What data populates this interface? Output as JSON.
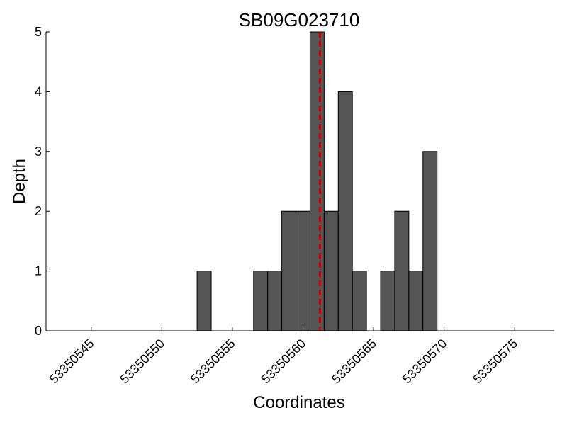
{
  "chart_data": {
    "type": "bar",
    "title": "SB09G023710",
    "xlabel": "Coordinates",
    "ylabel": "Depth",
    "xlim": [
      53350541.8,
      53350577.8
    ],
    "ylim": [
      0,
      5
    ],
    "x_ticks": [
      "53350545",
      "53350550",
      "53350555",
      "53350560",
      "53350565",
      "53350570",
      "53350575"
    ],
    "y_ticks": [
      "0",
      "1",
      "2",
      "3",
      "4",
      "5"
    ],
    "bins": [
      {
        "x": 53350553,
        "value": 1
      },
      {
        "x": 53350557,
        "value": 1
      },
      {
        "x": 53350558,
        "value": 1
      },
      {
        "x": 53350559,
        "value": 2
      },
      {
        "x": 53350560,
        "value": 2
      },
      {
        "x": 53350561,
        "value": 5
      },
      {
        "x": 53350562,
        "value": 2
      },
      {
        "x": 53350563,
        "value": 4
      },
      {
        "x": 53350564,
        "value": 1
      },
      {
        "x": 53350566,
        "value": 1
      },
      {
        "x": 53350567,
        "value": 2
      },
      {
        "x": 53350568,
        "value": 1
      },
      {
        "x": 53350569,
        "value": 3
      }
    ],
    "bar_width": 1,
    "bar_color": "#555555",
    "bar_edge_color": "#000000",
    "marker_line": {
      "x": 53350561.2,
      "color": "#cc0000",
      "style": "dashed"
    },
    "grid": false,
    "legend": "none"
  }
}
